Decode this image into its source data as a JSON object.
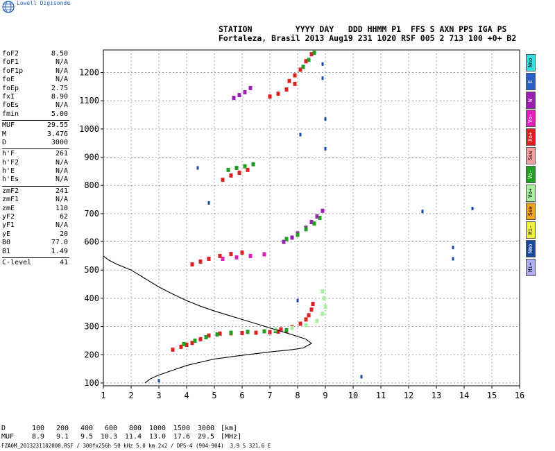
{
  "header": {
    "brand": "Lowell Digisonde",
    "labels_line": "STATION         YYYY DAY   DDD HHMM P1  FFS S AXN PPS IGA PS",
    "values_line": "Fortaleza, Brasil 2013 Aug19 231 1020 RSF 005 2 713 100 +0+ B2"
  },
  "params": {
    "group1": [
      {
        "name": "foF2",
        "value": "8.50"
      },
      {
        "name": "foF1",
        "value": "N/A"
      },
      {
        "name": "foF1p",
        "value": "N/A"
      },
      {
        "name": "foE",
        "value": "N/A"
      },
      {
        "name": "foEp",
        "value": "2.75"
      },
      {
        "name": "fxI",
        "value": "8.90"
      },
      {
        "name": "foEs",
        "value": "N/A"
      },
      {
        "name": "fmin",
        "value": "5.00"
      }
    ],
    "group2": [
      {
        "name": "MUF",
        "value": "29.55"
      },
      {
        "name": "M",
        "value": "3.476"
      },
      {
        "name": "D",
        "value": "3000"
      }
    ],
    "group3": [
      {
        "name": "h'F",
        "value": "261"
      },
      {
        "name": "h'F2",
        "value": "N/A"
      },
      {
        "name": "h'E",
        "value": "N/A"
      },
      {
        "name": "h'Es",
        "value": "N/A"
      }
    ],
    "group4": [
      {
        "name": "zmF2",
        "value": "241"
      },
      {
        "name": "zmF1",
        "value": "N/A"
      },
      {
        "name": "zmE",
        "value": "110"
      },
      {
        "name": "yF2",
        "value": "62"
      },
      {
        "name": "yF1",
        "value": "N/A"
      },
      {
        "name": "yE",
        "value": "20"
      },
      {
        "name": "B0",
        "value": "77.0"
      },
      {
        "name": "B1",
        "value": "1.49"
      }
    ],
    "group5": [
      {
        "name": "C-level",
        "value": "41"
      }
    ]
  },
  "legend": [
    {
      "label": "Nno",
      "color": "#33e0e0"
    },
    {
      "label": "E",
      "color": "#2a5ec8"
    },
    {
      "label": "W",
      "color": "#9c1fb5"
    },
    {
      "label": "Vo-",
      "color": "#e020b8"
    },
    {
      "label": "Xo+",
      "color": "#e02020"
    },
    {
      "label": "Ssw",
      "color": "#f5a0a0"
    },
    {
      "label": "Vo-",
      "color": "#20a020"
    },
    {
      "label": "Vo+",
      "color": "#a8f0a0"
    },
    {
      "label": "Sse",
      "color": "#f0a020"
    },
    {
      "label": "Hi-",
      "color": "#f0f040"
    },
    {
      "label": "Nmo",
      "color": "#1848a0"
    },
    {
      "label": "Hi+",
      "color": "#b0b0f0"
    }
  ],
  "distance_table": {
    "d_label": "D",
    "muf_label": "MUF",
    "distances": [
      "100",
      "200",
      "400",
      "600",
      "800",
      "1000",
      "1500",
      "3000"
    ],
    "mufs": [
      "8.9",
      "9.1",
      "9.5",
      "10.3",
      "11.4",
      "13.0",
      "17.6",
      "29.5"
    ],
    "d_unit": "[km]",
    "muf_unit": "[MHz]"
  },
  "footer": "FZA0M_2013231102000.RSF / 300fx256h 50 kHz 5.0 km 2x2 / DPS-4 (904-904)  3.9 S 321.6 E",
  "chart_data": {
    "type": "scatter",
    "title": "",
    "xlabel": "",
    "ylabel": "",
    "xlim": [
      1,
      16
    ],
    "ylim": [
      90,
      1280
    ],
    "xticks": [
      1,
      2,
      3,
      4,
      5,
      6,
      7,
      8,
      9,
      10,
      11,
      12,
      13,
      14,
      15,
      16
    ],
    "yticks": [
      100,
      200,
      300,
      400,
      500,
      600,
      700,
      800,
      900,
      1000,
      1100,
      1200
    ],
    "grid": true,
    "colors": {
      "o_trace": "#e02020",
      "x_trace": "#20a020",
      "o_minus": "#e020b8",
      "o_plus": "#a8f0a0",
      "x_plus": "#9c1fb5",
      "noise": "#1848a0"
    },
    "profile_curve": [
      [
        2.5,
        100
      ],
      [
        2.6,
        108
      ],
      [
        2.7,
        115
      ],
      [
        3.0,
        128
      ],
      [
        3.5,
        145
      ],
      [
        4.0,
        162
      ],
      [
        5.0,
        185
      ],
      [
        6.0,
        198
      ],
      [
        7.0,
        210
      ],
      [
        7.8,
        218
      ],
      [
        8.2,
        224
      ],
      [
        8.5,
        240
      ],
      [
        8.3,
        255
      ],
      [
        7.9,
        268
      ],
      [
        7.5,
        280
      ],
      [
        7.0,
        295
      ],
      [
        6.5,
        310
      ],
      [
        6.0,
        325
      ],
      [
        5.5,
        340
      ],
      [
        5.0,
        355
      ],
      [
        4.5,
        372
      ],
      [
        4.0,
        392
      ],
      [
        3.5,
        415
      ],
      [
        3.0,
        440
      ],
      [
        2.5,
        470
      ],
      [
        2.0,
        500
      ],
      [
        1.5,
        520
      ],
      [
        1.2,
        535
      ],
      [
        1.0,
        550
      ]
    ],
    "traces": [
      {
        "name": "o_F_low",
        "color_key": "o_trace",
        "points": [
          [
            3.5,
            218
          ],
          [
            3.8,
            228
          ],
          [
            4.0,
            235
          ],
          [
            4.2,
            242
          ],
          [
            4.5,
            255
          ],
          [
            4.8,
            268
          ],
          [
            5.2,
            275
          ],
          [
            5.6,
            276
          ],
          [
            6.0,
            277
          ],
          [
            6.5,
            278
          ],
          [
            7.0,
            280
          ],
          [
            7.3,
            282
          ],
          [
            7.6,
            285
          ]
        ]
      },
      {
        "name": "x_F_low",
        "color_key": "x_trace",
        "points": [
          [
            3.9,
            238
          ],
          [
            4.3,
            250
          ],
          [
            4.7,
            262
          ],
          [
            5.1,
            272
          ],
          [
            5.6,
            278
          ],
          [
            6.2,
            281
          ],
          [
            6.8,
            283
          ],
          [
            7.2,
            284
          ],
          [
            7.6,
            287
          ]
        ]
      },
      {
        "name": "o_F_rise",
        "color_key": "o_trace",
        "points": [
          [
            7.4,
            290
          ],
          [
            7.8,
            298
          ],
          [
            8.1,
            310
          ],
          [
            8.3,
            325
          ],
          [
            8.4,
            340
          ],
          [
            8.5,
            360
          ],
          [
            8.55,
            380
          ]
        ]
      },
      {
        "name": "x_F_rise",
        "color_key": "o_plus",
        "points": [
          [
            7.2,
            290
          ],
          [
            7.8,
            295
          ],
          [
            8.3,
            305
          ],
          [
            8.7,
            320
          ],
          [
            8.9,
            345
          ],
          [
            9.0,
            370
          ],
          [
            8.95,
            400
          ],
          [
            8.9,
            425
          ]
        ]
      },
      {
        "name": "o_2hop",
        "color_key": "o_trace",
        "points": [
          [
            4.2,
            520
          ],
          [
            4.5,
            530
          ],
          [
            4.8,
            540
          ],
          [
            5.2,
            550
          ],
          [
            5.6,
            557
          ],
          [
            6.0,
            562
          ]
        ]
      },
      {
        "name": "x_2hop",
        "color_key": "o_minus",
        "points": [
          [
            5.3,
            540
          ],
          [
            5.8,
            545
          ],
          [
            6.3,
            550
          ],
          [
            6.8,
            556
          ]
        ]
      },
      {
        "name": "o_3hop",
        "color_key": "x_plus",
        "points": [
          [
            7.5,
            600
          ],
          [
            7.8,
            615
          ],
          [
            8.0,
            630
          ],
          [
            8.3,
            650
          ],
          [
            8.5,
            670
          ],
          [
            8.7,
            690
          ],
          [
            8.9,
            710
          ]
        ]
      },
      {
        "name": "x_3hop",
        "color_key": "x_trace",
        "points": [
          [
            7.6,
            610
          ],
          [
            8.0,
            625
          ],
          [
            8.3,
            645
          ],
          [
            8.6,
            665
          ],
          [
            8.8,
            685
          ]
        ]
      },
      {
        "name": "o_4hop",
        "color_key": "o_trace",
        "points": [
          [
            5.3,
            820
          ],
          [
            5.6,
            835
          ],
          [
            5.9,
            845
          ],
          [
            6.2,
            855
          ]
        ]
      },
      {
        "name": "x_4hop",
        "color_key": "x_trace",
        "points": [
          [
            5.5,
            855
          ],
          [
            5.8,
            862
          ],
          [
            6.1,
            868
          ],
          [
            6.4,
            875
          ]
        ]
      },
      {
        "name": "o_5hop",
        "color_key": "x_plus",
        "points": [
          [
            5.7,
            1110
          ],
          [
            5.9,
            1120
          ],
          [
            6.1,
            1130
          ],
          [
            6.3,
            1145
          ]
        ]
      },
      {
        "name": "o_5hop_b",
        "color_key": "o_trace",
        "points": [
          [
            7.0,
            1115
          ],
          [
            7.3,
            1125
          ],
          [
            7.6,
            1140
          ],
          [
            7.9,
            1160
          ]
        ]
      },
      {
        "name": "o_6hop",
        "color_key": "o_trace",
        "points": [
          [
            7.7,
            1170
          ],
          [
            7.9,
            1190
          ],
          [
            8.1,
            1210
          ],
          [
            8.3,
            1240
          ],
          [
            8.5,
            1265
          ]
        ]
      },
      {
        "name": "x_6hop",
        "color_key": "x_trace",
        "points": [
          [
            8.2,
            1220
          ],
          [
            8.4,
            1245
          ],
          [
            8.6,
            1270
          ]
        ]
      }
    ],
    "noise_points": [
      [
        10.3,
        122
      ],
      [
        12.5,
        708
      ],
      [
        14.3,
        718
      ],
      [
        13.6,
        540
      ],
      [
        13.6,
        580
      ],
      [
        9.0,
        1035
      ],
      [
        8.9,
        1230
      ],
      [
        8.9,
        1180
      ],
      [
        8.1,
        980
      ],
      [
        9.0,
        930
      ],
      [
        4.4,
        862
      ],
      [
        8.0,
        392
      ],
      [
        3.0,
        108
      ],
      [
        4.8,
        738
      ]
    ]
  }
}
